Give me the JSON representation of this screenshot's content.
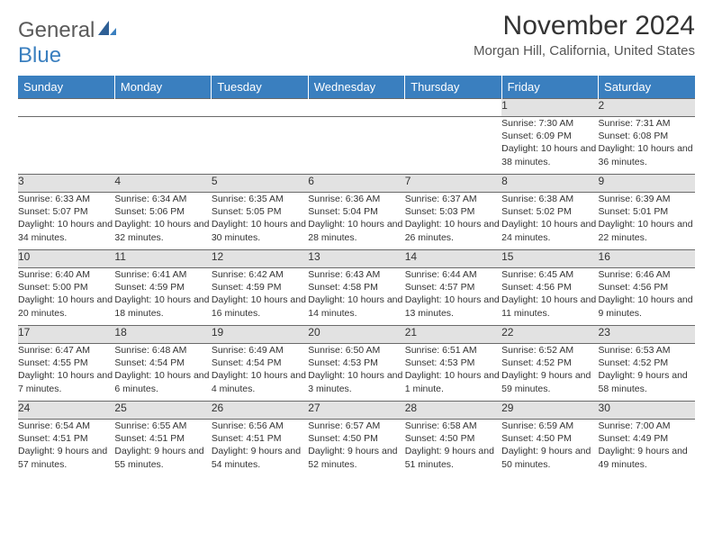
{
  "logo": {
    "word1": "General",
    "word2": "Blue",
    "color1": "#5a5a5a",
    "color2": "#3a7fbf"
  },
  "title": "November 2024",
  "subtitle": "Morgan Hill, California, United States",
  "header_bg": "#3a7fbf",
  "header_fg": "#ffffff",
  "daynum_bg": "#e2e2e2",
  "border_color": "#6a6a6a",
  "text_color": "#333333",
  "font_size_title": 30,
  "font_size_subtitle": 15,
  "font_size_header": 13,
  "font_size_daynum": 12,
  "font_size_body": 10.5,
  "weekdays": [
    "Sunday",
    "Monday",
    "Tuesday",
    "Wednesday",
    "Thursday",
    "Friday",
    "Saturday"
  ],
  "weeks": [
    [
      null,
      null,
      null,
      null,
      null,
      {
        "n": "1",
        "sunrise": "Sunrise: 7:30 AM",
        "sunset": "Sunset: 6:09 PM",
        "daylight": "Daylight: 10 hours and 38 minutes."
      },
      {
        "n": "2",
        "sunrise": "Sunrise: 7:31 AM",
        "sunset": "Sunset: 6:08 PM",
        "daylight": "Daylight: 10 hours and 36 minutes."
      }
    ],
    [
      {
        "n": "3",
        "sunrise": "Sunrise: 6:33 AM",
        "sunset": "Sunset: 5:07 PM",
        "daylight": "Daylight: 10 hours and 34 minutes."
      },
      {
        "n": "4",
        "sunrise": "Sunrise: 6:34 AM",
        "sunset": "Sunset: 5:06 PM",
        "daylight": "Daylight: 10 hours and 32 minutes."
      },
      {
        "n": "5",
        "sunrise": "Sunrise: 6:35 AM",
        "sunset": "Sunset: 5:05 PM",
        "daylight": "Daylight: 10 hours and 30 minutes."
      },
      {
        "n": "6",
        "sunrise": "Sunrise: 6:36 AM",
        "sunset": "Sunset: 5:04 PM",
        "daylight": "Daylight: 10 hours and 28 minutes."
      },
      {
        "n": "7",
        "sunrise": "Sunrise: 6:37 AM",
        "sunset": "Sunset: 5:03 PM",
        "daylight": "Daylight: 10 hours and 26 minutes."
      },
      {
        "n": "8",
        "sunrise": "Sunrise: 6:38 AM",
        "sunset": "Sunset: 5:02 PM",
        "daylight": "Daylight: 10 hours and 24 minutes."
      },
      {
        "n": "9",
        "sunrise": "Sunrise: 6:39 AM",
        "sunset": "Sunset: 5:01 PM",
        "daylight": "Daylight: 10 hours and 22 minutes."
      }
    ],
    [
      {
        "n": "10",
        "sunrise": "Sunrise: 6:40 AM",
        "sunset": "Sunset: 5:00 PM",
        "daylight": "Daylight: 10 hours and 20 minutes."
      },
      {
        "n": "11",
        "sunrise": "Sunrise: 6:41 AM",
        "sunset": "Sunset: 4:59 PM",
        "daylight": "Daylight: 10 hours and 18 minutes."
      },
      {
        "n": "12",
        "sunrise": "Sunrise: 6:42 AM",
        "sunset": "Sunset: 4:59 PM",
        "daylight": "Daylight: 10 hours and 16 minutes."
      },
      {
        "n": "13",
        "sunrise": "Sunrise: 6:43 AM",
        "sunset": "Sunset: 4:58 PM",
        "daylight": "Daylight: 10 hours and 14 minutes."
      },
      {
        "n": "14",
        "sunrise": "Sunrise: 6:44 AM",
        "sunset": "Sunset: 4:57 PM",
        "daylight": "Daylight: 10 hours and 13 minutes."
      },
      {
        "n": "15",
        "sunrise": "Sunrise: 6:45 AM",
        "sunset": "Sunset: 4:56 PM",
        "daylight": "Daylight: 10 hours and 11 minutes."
      },
      {
        "n": "16",
        "sunrise": "Sunrise: 6:46 AM",
        "sunset": "Sunset: 4:56 PM",
        "daylight": "Daylight: 10 hours and 9 minutes."
      }
    ],
    [
      {
        "n": "17",
        "sunrise": "Sunrise: 6:47 AM",
        "sunset": "Sunset: 4:55 PM",
        "daylight": "Daylight: 10 hours and 7 minutes."
      },
      {
        "n": "18",
        "sunrise": "Sunrise: 6:48 AM",
        "sunset": "Sunset: 4:54 PM",
        "daylight": "Daylight: 10 hours and 6 minutes."
      },
      {
        "n": "19",
        "sunrise": "Sunrise: 6:49 AM",
        "sunset": "Sunset: 4:54 PM",
        "daylight": "Daylight: 10 hours and 4 minutes."
      },
      {
        "n": "20",
        "sunrise": "Sunrise: 6:50 AM",
        "sunset": "Sunset: 4:53 PM",
        "daylight": "Daylight: 10 hours and 3 minutes."
      },
      {
        "n": "21",
        "sunrise": "Sunrise: 6:51 AM",
        "sunset": "Sunset: 4:53 PM",
        "daylight": "Daylight: 10 hours and 1 minute."
      },
      {
        "n": "22",
        "sunrise": "Sunrise: 6:52 AM",
        "sunset": "Sunset: 4:52 PM",
        "daylight": "Daylight: 9 hours and 59 minutes."
      },
      {
        "n": "23",
        "sunrise": "Sunrise: 6:53 AM",
        "sunset": "Sunset: 4:52 PM",
        "daylight": "Daylight: 9 hours and 58 minutes."
      }
    ],
    [
      {
        "n": "24",
        "sunrise": "Sunrise: 6:54 AM",
        "sunset": "Sunset: 4:51 PM",
        "daylight": "Daylight: 9 hours and 57 minutes."
      },
      {
        "n": "25",
        "sunrise": "Sunrise: 6:55 AM",
        "sunset": "Sunset: 4:51 PM",
        "daylight": "Daylight: 9 hours and 55 minutes."
      },
      {
        "n": "26",
        "sunrise": "Sunrise: 6:56 AM",
        "sunset": "Sunset: 4:51 PM",
        "daylight": "Daylight: 9 hours and 54 minutes."
      },
      {
        "n": "27",
        "sunrise": "Sunrise: 6:57 AM",
        "sunset": "Sunset: 4:50 PM",
        "daylight": "Daylight: 9 hours and 52 minutes."
      },
      {
        "n": "28",
        "sunrise": "Sunrise: 6:58 AM",
        "sunset": "Sunset: 4:50 PM",
        "daylight": "Daylight: 9 hours and 51 minutes."
      },
      {
        "n": "29",
        "sunrise": "Sunrise: 6:59 AM",
        "sunset": "Sunset: 4:50 PM",
        "daylight": "Daylight: 9 hours and 50 minutes."
      },
      {
        "n": "30",
        "sunrise": "Sunrise: 7:00 AM",
        "sunset": "Sunset: 4:49 PM",
        "daylight": "Daylight: 9 hours and 49 minutes."
      }
    ]
  ]
}
